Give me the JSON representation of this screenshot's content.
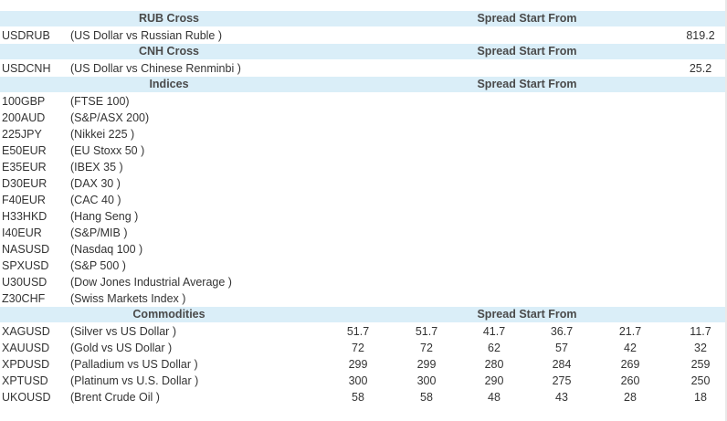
{
  "sections": [
    {
      "title": "RUB Cross",
      "spread_label": "Spread Start From",
      "rows": [
        {
          "symbol": "USDRUB",
          "desc": "(US Dollar vs Russian Ruble )",
          "value": "819.2"
        }
      ]
    },
    {
      "title": "CNH Cross",
      "spread_label": "Spread Start From",
      "rows": [
        {
          "symbol": "USDCNH",
          "desc": "(US Dollar vs Chinese Renminbi )",
          "value": "25.2"
        }
      ]
    },
    {
      "title": "Indices",
      "spread_label": "Spread Start From",
      "rows": [
        {
          "symbol": "100GBP",
          "desc": "(FTSE 100)"
        },
        {
          "symbol": "200AUD",
          "desc": "(S&P/ASX 200)"
        },
        {
          "symbol": "225JPY",
          "desc": "(Nikkei 225 )"
        },
        {
          "symbol": "E50EUR",
          "desc": "(EU Stoxx 50 )"
        },
        {
          "symbol": "E35EUR",
          "desc": "(IBEX 35 )"
        },
        {
          "symbol": "D30EUR",
          "desc": "(DAX 30 )"
        },
        {
          "symbol": "F40EUR",
          "desc": "(CAC 40 )"
        },
        {
          "symbol": "H33HKD",
          "desc": "(Hang Seng )"
        },
        {
          "symbol": "I40EUR",
          "desc": "(S&P/MIB )"
        },
        {
          "symbol": "NASUSD",
          "desc": "(Nasdaq 100 )"
        },
        {
          "symbol": "SPXUSD",
          "desc": "(S&P 500 )"
        },
        {
          "symbol": "U30USD",
          "desc": "(Dow Jones Industrial Average )"
        },
        {
          "symbol": "Z30CHF",
          "desc": "(Swiss Markets Index )"
        }
      ]
    },
    {
      "title": "Commodities",
      "spread_label": "Spread Start From",
      "rows": [
        {
          "symbol": "XAGUSD",
          "desc": "(Silver vs US Dollar )",
          "values": [
            "51.7",
            "51.7",
            "41.7",
            "36.7",
            "21.7",
            "11.7"
          ]
        },
        {
          "symbol": "XAUUSD",
          "desc": "(Gold vs US Dollar )",
          "values": [
            "72",
            "72",
            "62",
            "57",
            "42",
            "32"
          ]
        },
        {
          "symbol": "XPDUSD",
          "desc": "(Palladium vs US Dollar )",
          "values": [
            "299",
            "299",
            "280",
            "284",
            "269",
            "259"
          ]
        },
        {
          "symbol": "XPTUSD",
          "desc": "(Platinum vs U.S. Dollar )",
          "values": [
            "300",
            "300",
            "290",
            "275",
            "260",
            "250"
          ]
        },
        {
          "symbol": "UKOUSD",
          "desc": "(Brent Crude Oil )",
          "values": [
            "58",
            "58",
            "48",
            "43",
            "28",
            "18"
          ]
        }
      ]
    }
  ],
  "colors": {
    "header_bg": "#daeef8",
    "text": "#333333",
    "header_text": "#4a4a4a"
  }
}
